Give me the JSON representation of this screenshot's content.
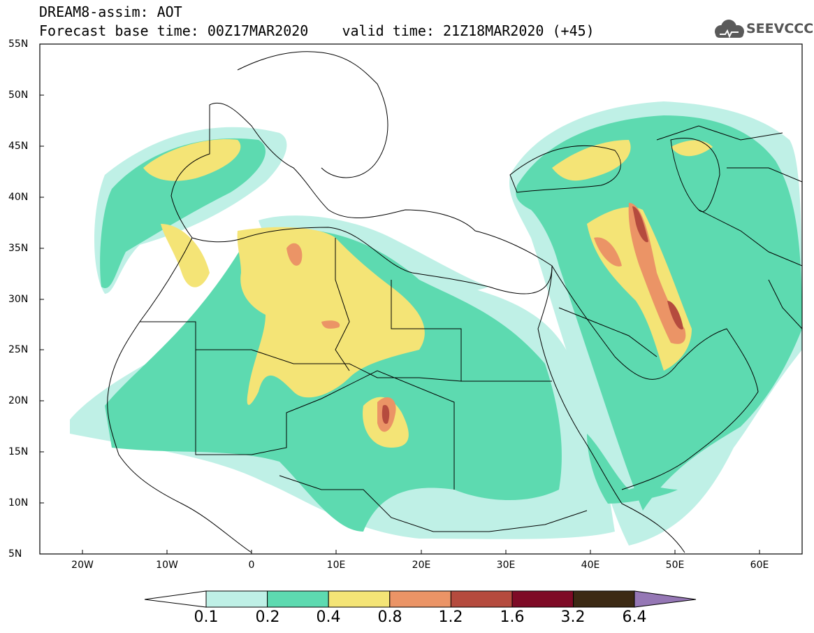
{
  "header": {
    "title_line1": "DREAM8-assim: AOT",
    "title_line2": "Forecast base time: 00Z17MAR2020    valid time: 21Z18MAR2020 (+45)",
    "logo_text": "SEEVCCC"
  },
  "map": {
    "projection": "lat-lon",
    "lat_range": [
      5,
      55
    ],
    "lon_range": [
      -25,
      65
    ],
    "lat_labels": [
      "55N",
      "50N",
      "45N",
      "40N",
      "35N",
      "30N",
      "25N",
      "20N",
      "15N",
      "10N",
      "5N"
    ],
    "lon_labels": [
      "20W",
      "10W",
      "0",
      "10E",
      "20E",
      "30E",
      "40E",
      "50E",
      "60E"
    ],
    "field": "Aerosol Optical Thickness (AOT)"
  },
  "legend": {
    "levels": [
      "0.1",
      "0.2",
      "0.4",
      "0.8",
      "1.2",
      "1.6",
      "3.2",
      "6.4"
    ],
    "colors": [
      "#bff0e6",
      "#5ddab0",
      "#f4e476",
      "#eb9466",
      "#b54b3e",
      "#7e0b26",
      "#3c2a14",
      "#9577b5"
    ]
  }
}
